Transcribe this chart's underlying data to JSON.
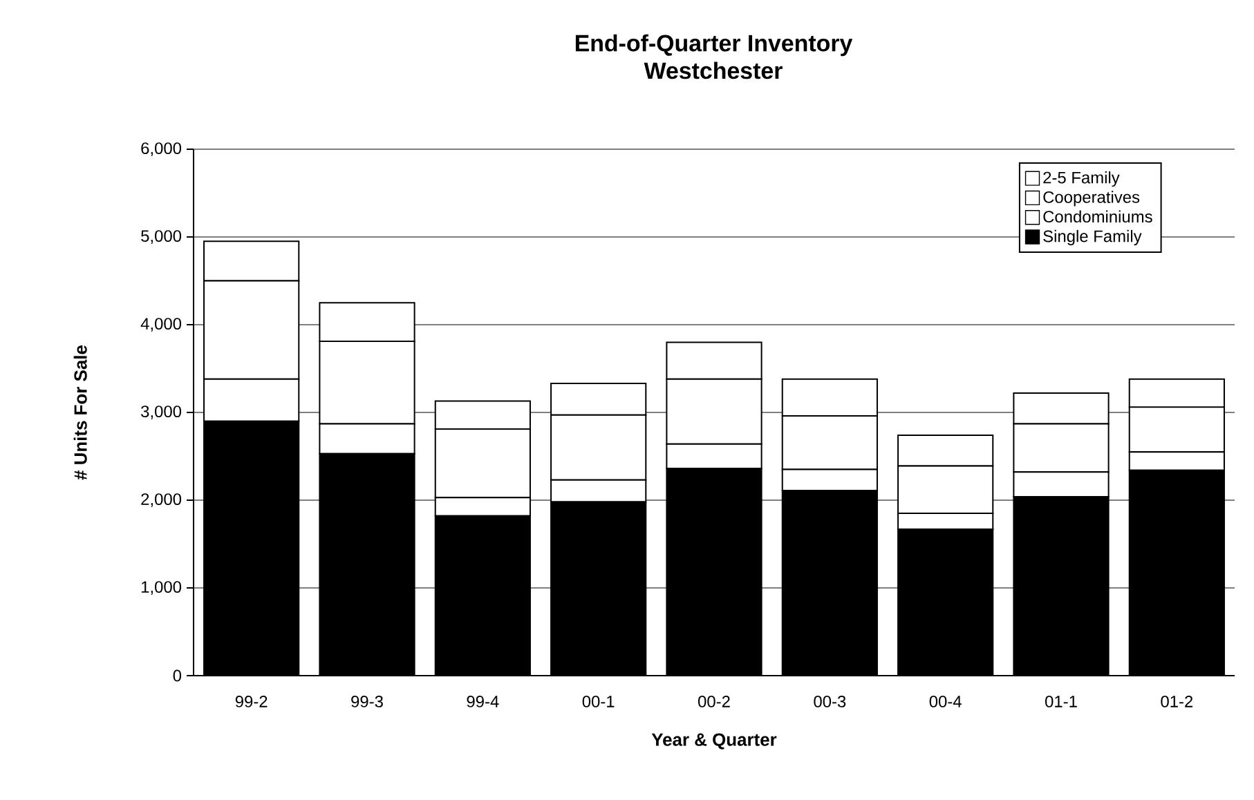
{
  "chart_data": {
    "type": "bar",
    "title": "End-of-Quarter Inventory",
    "subtitle": "Westchester",
    "xlabel": "Year & Quarter",
    "ylabel": "# Units For Sale",
    "categories": [
      "99-2",
      "99-3",
      "99-4",
      "00-1",
      "00-2",
      "00-3",
      "00-4",
      "01-1",
      "01-2"
    ],
    "stacked": true,
    "grid": "y",
    "legend": "top right",
    "ylim": [
      0,
      6000
    ],
    "yticks": [
      0,
      {
        "value": 1000,
        "label": "1,000"
      },
      {
        "value": 2000,
        "label": "2,000"
      },
      {
        "value": 3000,
        "label": "3,000"
      },
      {
        "value": 4000,
        "label": "4,000"
      },
      {
        "value": 5000,
        "label": "5,000"
      },
      {
        "value": 6000,
        "label": "6,000"
      }
    ],
    "series": [
      {
        "name": "Single Family",
        "color": "#000000",
        "values": [
          2900,
          2530,
          1820,
          1980,
          2360,
          2110,
          1670,
          2040,
          2340
        ]
      },
      {
        "name": "Condominiums",
        "color": "#ffffff",
        "values": [
          480,
          340,
          210,
          250,
          280,
          240,
          180,
          280,
          210
        ]
      },
      {
        "name": "Cooperatives",
        "color": "#ffffff",
        "values": [
          1120,
          940,
          780,
          740,
          740,
          610,
          540,
          550,
          510
        ]
      },
      {
        "name": "2-5 Family",
        "color": "#ffffff",
        "values": [
          450,
          440,
          320,
          360,
          420,
          420,
          350,
          350,
          320
        ]
      }
    ]
  }
}
